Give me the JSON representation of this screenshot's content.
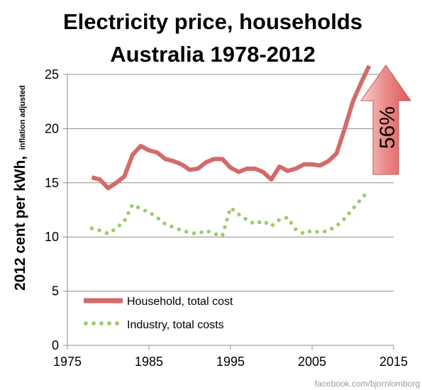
{
  "chart_data": {
    "type": "line",
    "title": [
      "Electricity price, households",
      "Australia 1978-2012"
    ],
    "ylabel": "2012 cent per kWh,",
    "ylabel_sub": "inflation adjusted",
    "xlim": [
      1975,
      2015
    ],
    "ylim": [
      0,
      26
    ],
    "x_ticks": [
      1975,
      1985,
      1995,
      2005,
      2015
    ],
    "y_ticks": [
      0,
      5,
      10,
      15,
      20,
      25
    ],
    "grid": "horizontal",
    "legend_position": "bottom-left",
    "series": [
      {
        "name": "Household, total cost",
        "style": "solid",
        "color": "#d46a6a",
        "x": [
          1978,
          1979,
          1980,
          1981,
          1982,
          1983,
          1984,
          1985,
          1986,
          1987,
          1988,
          1989,
          1990,
          1991,
          1992,
          1993,
          1994,
          1995,
          1996,
          1997,
          1998,
          1999,
          2000,
          2001,
          2002,
          2003,
          2004,
          2005,
          2006,
          2007,
          2008,
          2009,
          2010,
          2011,
          2012
        ],
        "values": [
          15.5,
          15.3,
          14.5,
          15.0,
          15.6,
          17.6,
          18.4,
          18.0,
          17.8,
          17.2,
          17.0,
          16.7,
          16.2,
          16.3,
          16.9,
          17.2,
          17.2,
          16.4,
          16.0,
          16.3,
          16.3,
          16.0,
          15.3,
          16.5,
          16.1,
          16.3,
          16.7,
          16.7,
          16.6,
          17.0,
          17.7,
          20.0,
          22.5,
          24.2,
          25.8
        ]
      },
      {
        "name": "Industry, total costs",
        "style": "dotted",
        "color": "#9ccc6b",
        "x": [
          1978,
          1979,
          1980,
          1981,
          1982,
          1983,
          1984,
          1985,
          1986,
          1987,
          1988,
          1989,
          1990,
          1991,
          1992,
          1993,
          1994,
          1995,
          1996,
          1997,
          1998,
          1999,
          2000,
          2001,
          2002,
          2003,
          2004,
          2005,
          2006,
          2007,
          2008,
          2009,
          2010,
          2011,
          2012
        ],
        "values": [
          10.8,
          10.6,
          10.3,
          10.8,
          11.5,
          13.0,
          12.6,
          12.3,
          11.8,
          11.2,
          10.9,
          10.6,
          10.4,
          10.3,
          10.6,
          10.3,
          10.1,
          12.7,
          12.1,
          11.6,
          11.2,
          11.5,
          11.0,
          11.6,
          11.8,
          10.7,
          10.3,
          10.6,
          10.4,
          10.6,
          11.0,
          11.7,
          12.6,
          13.5,
          14.3
        ]
      }
    ],
    "annotation": {
      "label": "56%",
      "color": "#e46f6f"
    }
  },
  "credit": "facebook.com/bjornlomborg"
}
